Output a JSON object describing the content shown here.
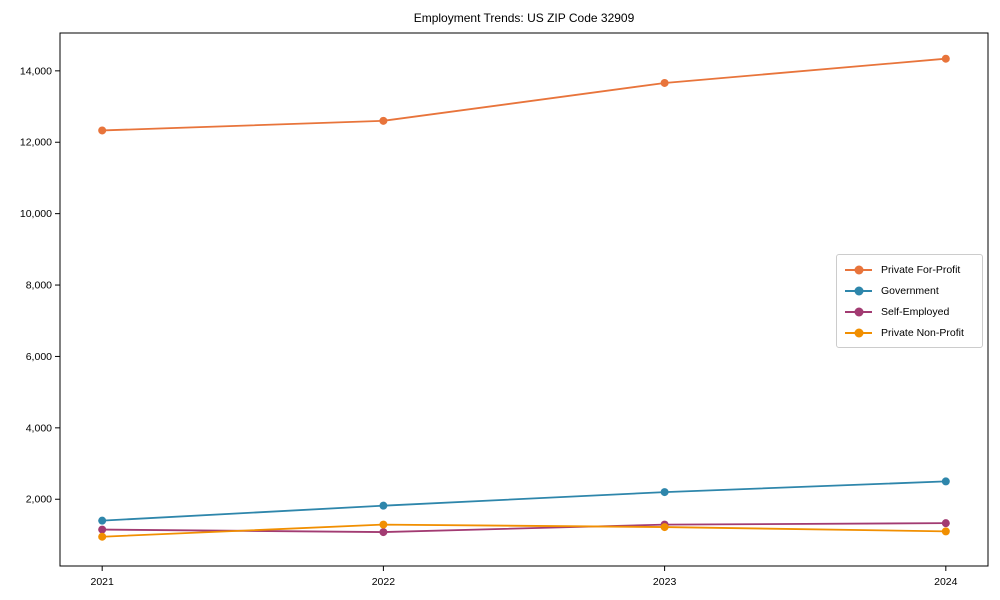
{
  "chart_data": {
    "type": "line",
    "title": "Employment Trends: US ZIP Code 32909",
    "xlabel": "",
    "ylabel": "",
    "x": [
      2021,
      2022,
      2023,
      2024
    ],
    "x_tick_labels": [
      "2021",
      "2022",
      "2023",
      "2024"
    ],
    "series": [
      {
        "name": "Private For-Profit",
        "color": "#E8743B",
        "values": [
          12330,
          12600,
          13660,
          14340
        ]
      },
      {
        "name": "Government",
        "color": "#2E86AB",
        "values": [
          1400,
          1820,
          2200,
          2500
        ]
      },
      {
        "name": "Self-Employed",
        "color": "#A23B72",
        "values": [
          1150,
          1080,
          1290,
          1330
        ]
      },
      {
        "name": "Private Non-Profit",
        "color": "#F18F01",
        "values": [
          950,
          1290,
          1220,
          1100
        ]
      }
    ],
    "xlim": [
      2020.85,
      2024.15
    ],
    "ylim": [
      130,
      15060
    ],
    "yticks": [
      2000,
      4000,
      6000,
      8000,
      10000,
      12000,
      14000
    ],
    "ytick_labels": [
      "2,000",
      "4,000",
      "6,000",
      "8,000",
      "10,000",
      "12,000",
      "14,000"
    ],
    "grid": false,
    "legend_position": "center right",
    "marker": "circle",
    "axis_color": "#000000",
    "background": "#ffffff"
  }
}
